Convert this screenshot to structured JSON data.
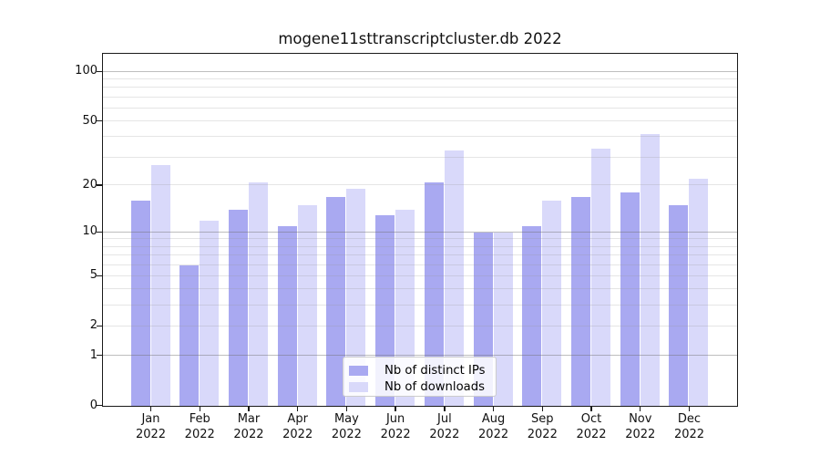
{
  "chart_data": {
    "type": "bar",
    "title": "mogene11sttranscriptcluster.db 2022",
    "categories": [
      "Jan 2022",
      "Feb 2022",
      "Mar 2022",
      "Apr 2022",
      "May 2022",
      "Jun 2022",
      "Jul 2022",
      "Aug 2022",
      "Sep 2022",
      "Oct 2022",
      "Nov 2022",
      "Dec 2022"
    ],
    "series": [
      {
        "name": "Nb of distinct IPs",
        "color": "#a9a9f1",
        "values": [
          16,
          6,
          14,
          11,
          17,
          13,
          21,
          10,
          11,
          17,
          18,
          15
        ]
      },
      {
        "name": "Nb of downloads",
        "color": "#d9d9fa",
        "values": [
          27,
          12,
          21,
          15,
          19,
          14,
          33,
          10,
          16,
          34,
          42,
          22
        ]
      }
    ],
    "y_axis": {
      "scale": "log1p",
      "tick_labels": [
        "0",
        "1",
        "2",
        "5",
        "10",
        "20",
        "50",
        "100"
      ],
      "tick_values": [
        0,
        1,
        2,
        5,
        10,
        20,
        50,
        100
      ],
      "major_gridlines": [
        1,
        10,
        100
      ],
      "minor_gridlines": [
        2,
        3,
        4,
        5,
        6,
        7,
        8,
        9,
        20,
        30,
        40,
        50,
        60,
        70,
        80,
        90
      ],
      "range": [
        0,
        128
      ]
    },
    "xlabel": "",
    "ylabel": "",
    "grid": true,
    "legend_position": "lower center"
  },
  "colors": {
    "bar_distinct_ips": "#a9a9f1",
    "bar_downloads": "#d9d9fa",
    "major_grid": "#6e6e6e",
    "minor_grid": "#969696",
    "spine": "#1a1a1a",
    "legend_border": "#cccccc",
    "text": "#111111"
  }
}
